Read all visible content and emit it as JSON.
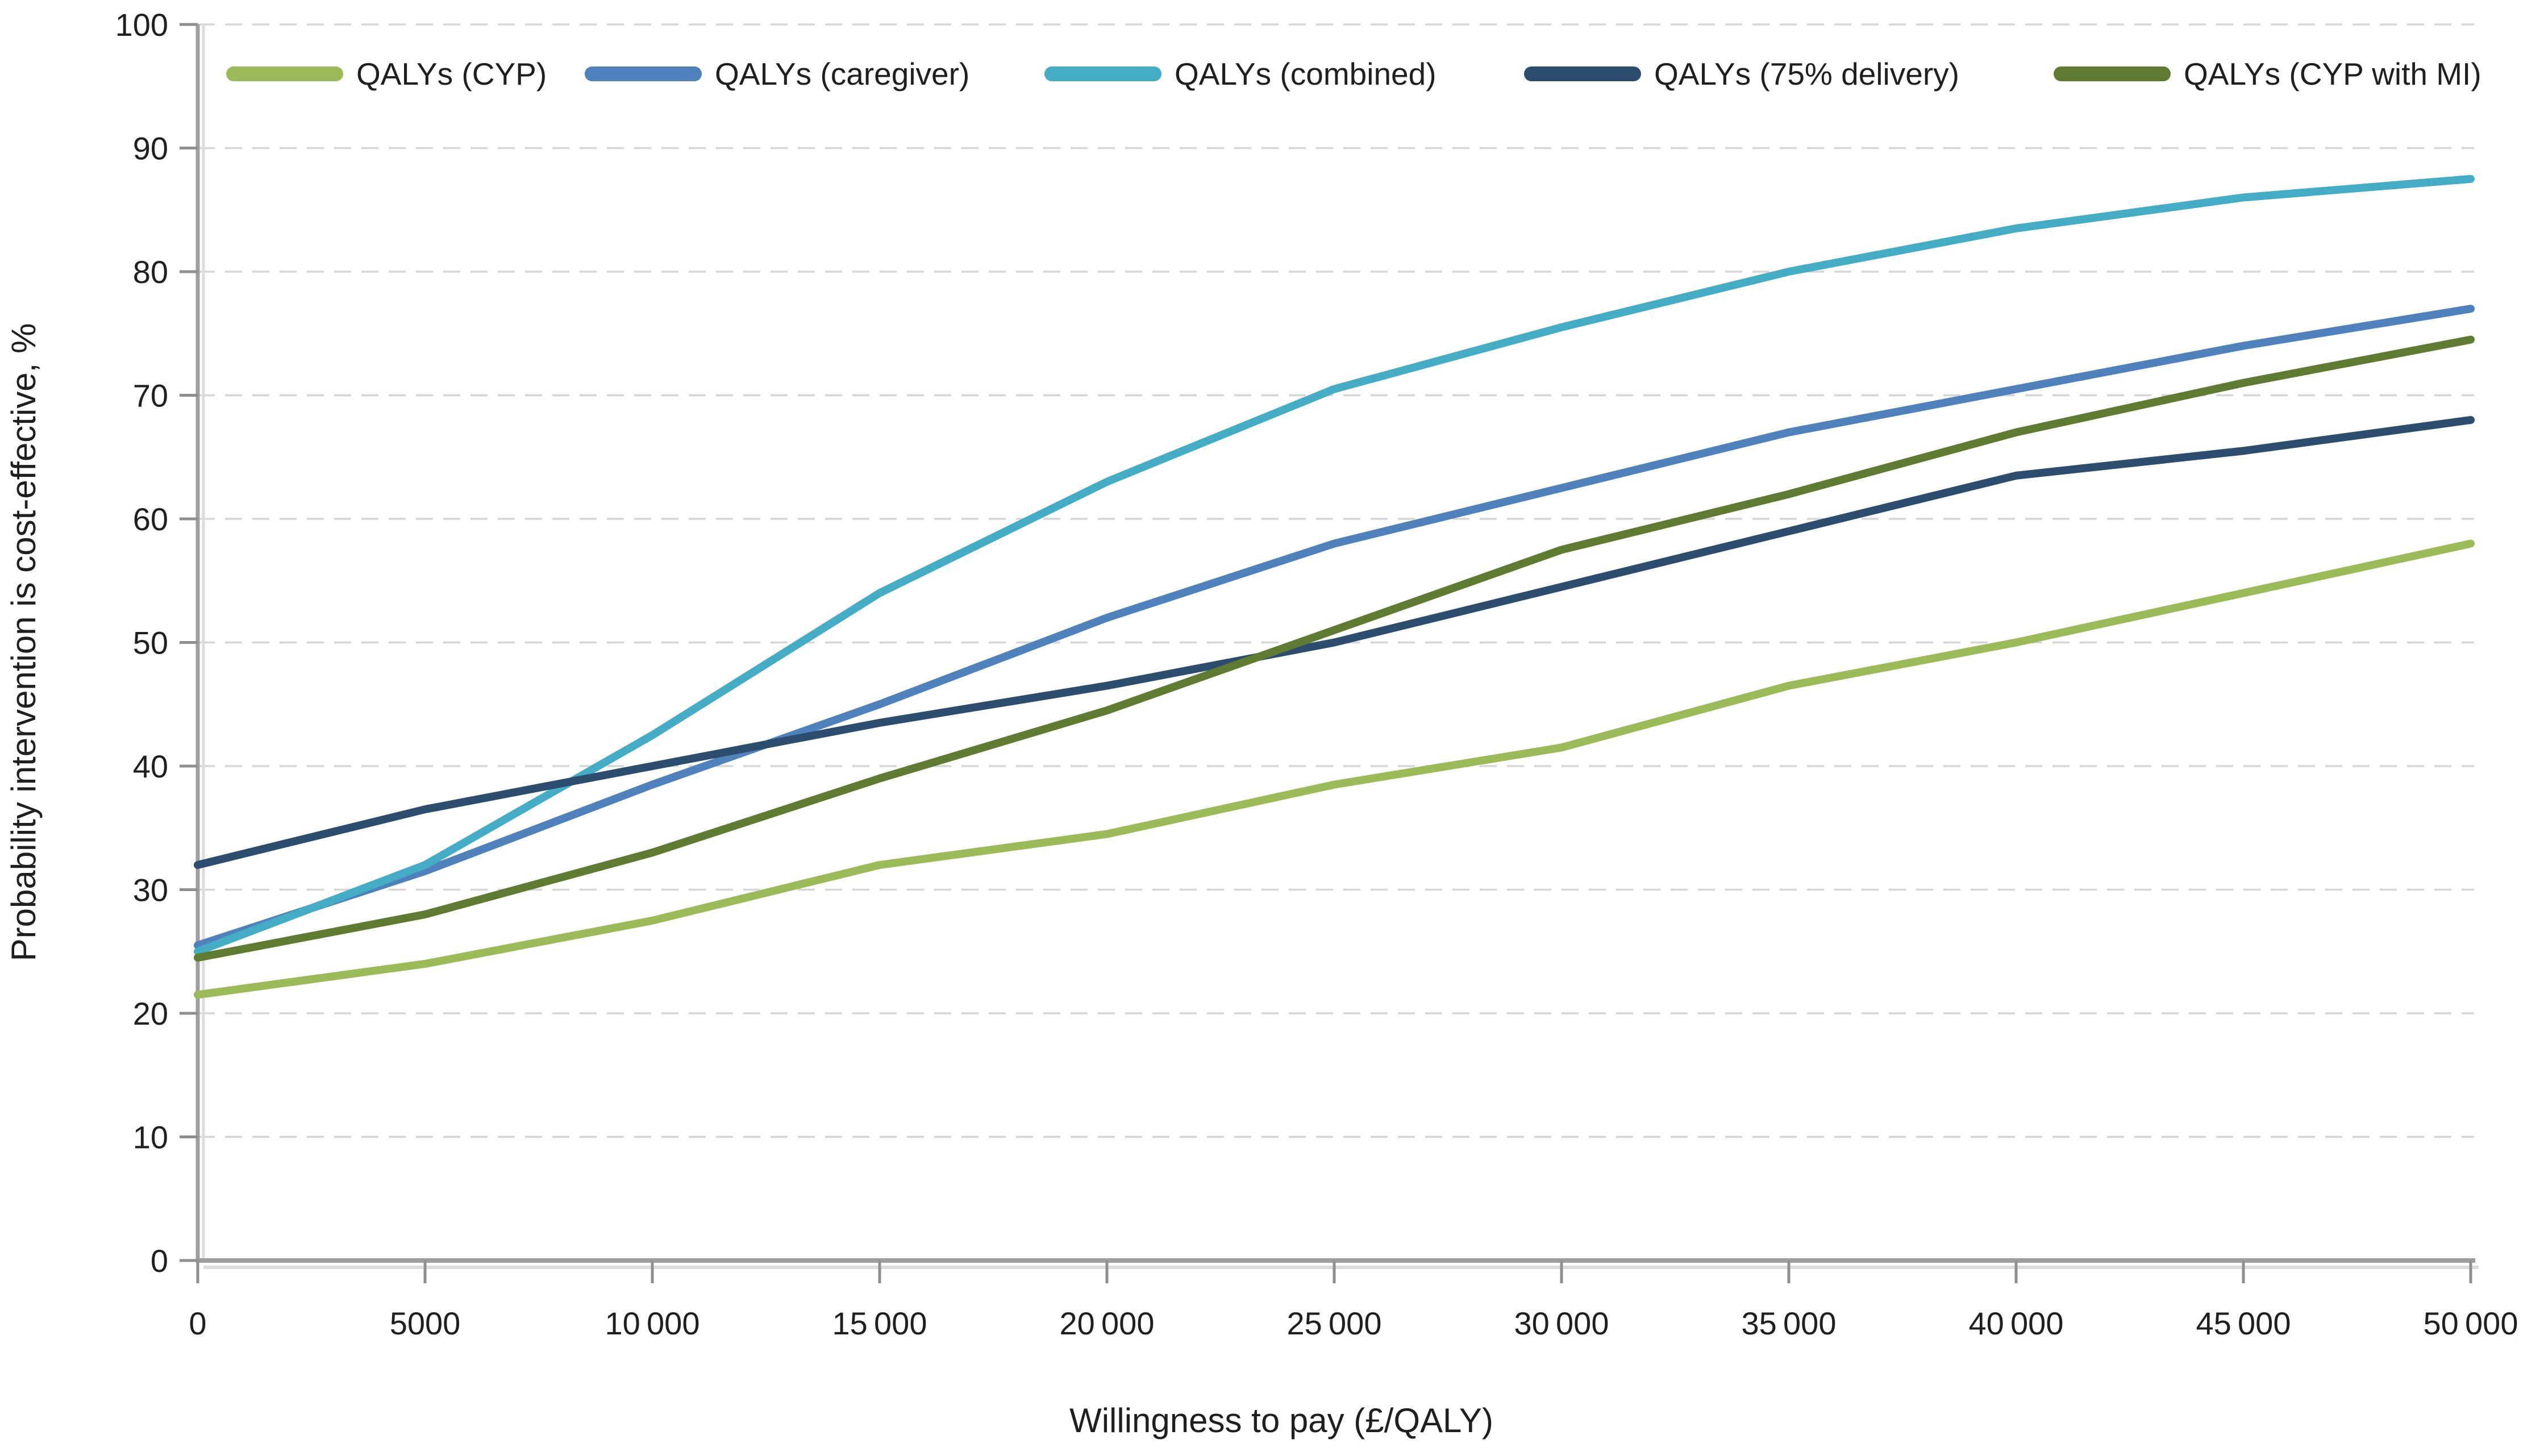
{
  "chart_data": {
    "type": "line",
    "title": "",
    "xlabel": "Willingness to pay (£/QALY)",
    "ylabel": "Probability intervention is cost-effective, %",
    "xlim": [
      0,
      50000
    ],
    "ylim": [
      0,
      100
    ],
    "grid": "horizontal-dashed",
    "legend_position": "top",
    "x": [
      0,
      5000,
      10000,
      15000,
      20000,
      25000,
      30000,
      35000,
      40000,
      45000,
      50000
    ],
    "x_tick_labels": [
      "0",
      "5000",
      "10 000",
      "15 000",
      "20 000",
      "25 000",
      "30 000",
      "35 000",
      "40 000",
      "45 000",
      "50 000"
    ],
    "y_ticks": [
      0,
      10,
      20,
      30,
      40,
      50,
      60,
      70,
      80,
      90,
      100
    ],
    "series": [
      {
        "name": "QALYs (CYP)",
        "color": "#9BBB59",
        "values": [
          21.5,
          24.0,
          27.5,
          32.0,
          34.5,
          38.5,
          41.5,
          46.5,
          50.0,
          54.0,
          58.0
        ]
      },
      {
        "name": "QALYs (caregiver)",
        "color": "#4F81BD",
        "values": [
          25.5,
          31.5,
          38.5,
          45.0,
          52.0,
          58.0,
          62.5,
          67.0,
          70.5,
          74.0,
          77.0
        ]
      },
      {
        "name": "QALYs (combined)",
        "color": "#45ACC5",
        "values": [
          25.0,
          32.0,
          42.5,
          54.0,
          63.0,
          70.5,
          75.5,
          80.0,
          83.5,
          86.0,
          87.5
        ]
      },
      {
        "name": "QALYs (75% delivery)",
        "color": "#2C4D6E",
        "values": [
          32.0,
          36.5,
          40.0,
          43.5,
          46.5,
          50.0,
          54.5,
          59.0,
          63.5,
          65.5,
          68.0
        ]
      },
      {
        "name": "QALYs (CYP with MI)",
        "color": "#5F7B32",
        "values": [
          24.5,
          28.0,
          33.0,
          39.0,
          44.5,
          51.0,
          57.5,
          62.0,
          67.0,
          71.0,
          74.5
        ]
      }
    ],
    "axis_color": "#9E9E9E",
    "axis_shadow_color": "#DCDCDC",
    "tick_color": "#8F8F8F",
    "grid_color": "#D6D6D6",
    "text_color": "#1f1f1f"
  }
}
